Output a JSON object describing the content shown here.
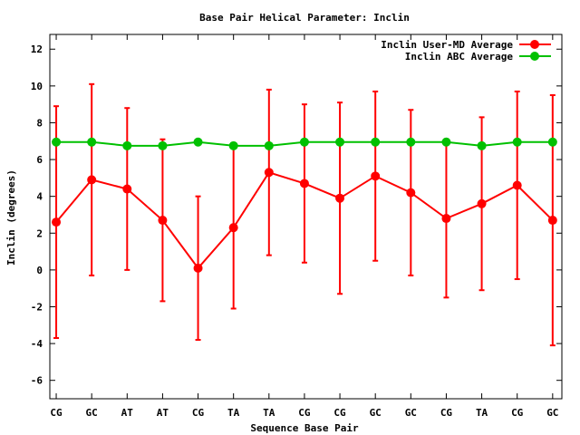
{
  "chart_data": {
    "type": "line",
    "title": "Base Pair Helical Parameter: Inclin",
    "xlabel": "Sequence Base Pair",
    "ylabel": "Inclin (degrees)",
    "categories": [
      "CG",
      "GC",
      "AT",
      "AT",
      "CG",
      "TA",
      "TA",
      "CG",
      "CG",
      "GC",
      "GC",
      "CG",
      "TA",
      "CG",
      "GC"
    ],
    "ylim": [
      -7,
      12.8
    ],
    "yticks": [
      -6,
      -4,
      -2,
      0,
      2,
      4,
      6,
      8,
      10,
      12
    ],
    "legend_position": "top-right",
    "grid": false,
    "series": [
      {
        "name": "Inclin User-MD Average",
        "color": "#ff0000",
        "values": [
          2.6,
          4.9,
          4.4,
          2.7,
          0.1,
          2.3,
          5.3,
          4.7,
          3.9,
          5.1,
          4.2,
          2.8,
          3.6,
          4.6,
          2.7
        ],
        "errors": [
          6.3,
          5.2,
          4.4,
          4.4,
          3.9,
          4.4,
          4.5,
          4.3,
          5.2,
          4.6,
          4.5,
          4.3,
          4.7,
          5.1,
          6.8
        ]
      },
      {
        "name": "Inclin ABC Average",
        "color": "#00c000",
        "values": [
          6.95,
          6.95,
          6.75,
          6.75,
          6.95,
          6.75,
          6.75,
          6.95,
          6.95,
          6.95,
          6.95,
          6.95,
          6.75,
          6.95,
          6.95
        ]
      }
    ]
  }
}
